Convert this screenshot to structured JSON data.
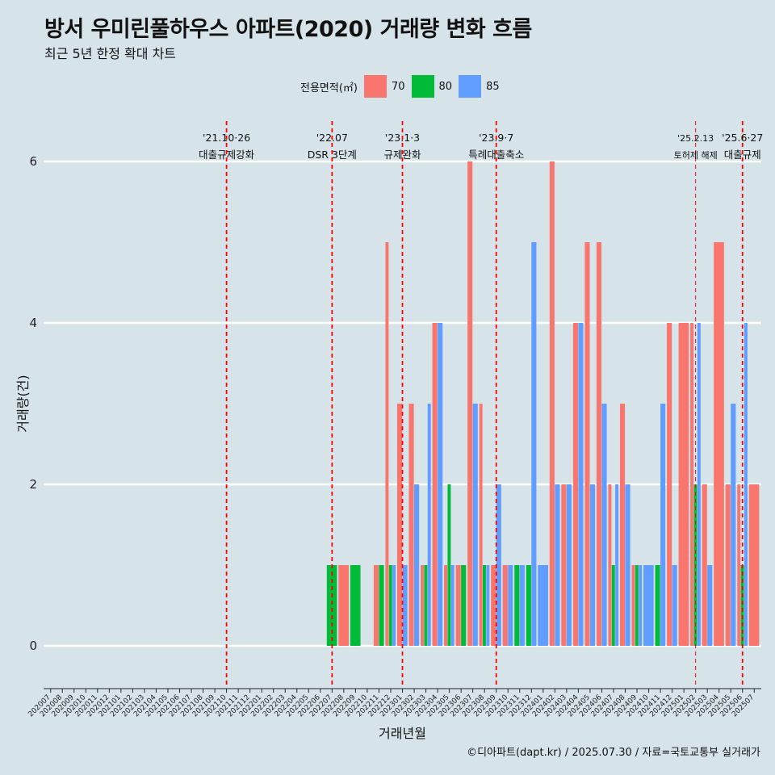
{
  "header": {
    "title": "방서 우미린풀하우스 아파트(2020) 거래량 변화 흐름",
    "subtitle": "최근 5년 한정 확대 차트"
  },
  "legend": {
    "title": "전용면적(㎡)",
    "position": "top",
    "items": [
      {
        "label": "70",
        "color": "#f8766d"
      },
      {
        "label": "80",
        "color": "#00ba38"
      },
      {
        "label": "85",
        "color": "#619cff"
      }
    ]
  },
  "caption": "©디아파트(dapt.kr) / 2025.07.30 / 자료=국토교통부 실거래가",
  "chart_data": {
    "type": "bar",
    "xlabel": "거래년월",
    "ylabel": "거래량(건)",
    "ylim": [
      -0.5,
      6.5
    ],
    "y_ticks": [
      0,
      2,
      4,
      6
    ],
    "grid": "horizontal major lines",
    "categories": [
      "202007",
      "202008",
      "202009",
      "202010",
      "202011",
      "202012",
      "202101",
      "202102",
      "202103",
      "202104",
      "202105",
      "202106",
      "202107",
      "202108",
      "202109",
      "202110",
      "202111",
      "202112",
      "202201",
      "202202",
      "202203",
      "202204",
      "202205",
      "202206",
      "202207",
      "202208",
      "202209",
      "202210",
      "202211",
      "202212",
      "202301",
      "202302",
      "202303",
      "202304",
      "202305",
      "202306",
      "202307",
      "202308",
      "202309",
      "202310",
      "202311",
      "202312",
      "202401",
      "202402",
      "202403",
      "202404",
      "202405",
      "202406",
      "202407",
      "202408",
      "202409",
      "202410",
      "202411",
      "202412",
      "202501",
      "202502",
      "202503",
      "202504",
      "202505",
      "202506",
      "202507"
    ],
    "series": [
      {
        "name": "70",
        "color": "#f8766d",
        "values": [
          null,
          null,
          null,
          null,
          null,
          null,
          null,
          null,
          null,
          null,
          null,
          null,
          null,
          null,
          null,
          null,
          null,
          null,
          null,
          null,
          null,
          null,
          null,
          null,
          null,
          1,
          null,
          null,
          1,
          5,
          3,
          3,
          1,
          4,
          1,
          1,
          6,
          3,
          1,
          1,
          null,
          null,
          null,
          6,
          2,
          4,
          5,
          5,
          2,
          3,
          1,
          null,
          null,
          4,
          4,
          4,
          2,
          5,
          2,
          2,
          2
        ]
      },
      {
        "name": "80",
        "color": "#00ba38",
        "values": [
          null,
          null,
          null,
          null,
          null,
          null,
          null,
          null,
          null,
          null,
          null,
          null,
          null,
          null,
          null,
          null,
          null,
          null,
          null,
          null,
          null,
          null,
          null,
          null,
          1,
          null,
          1,
          null,
          1,
          1,
          null,
          null,
          1,
          null,
          2,
          1,
          null,
          1,
          null,
          null,
          1,
          1,
          null,
          null,
          null,
          null,
          null,
          null,
          1,
          null,
          1,
          null,
          1,
          null,
          null,
          2,
          null,
          null,
          null,
          1,
          null
        ]
      },
      {
        "name": "85",
        "color": "#619cff",
        "values": [
          null,
          null,
          null,
          null,
          null,
          null,
          null,
          null,
          null,
          null,
          null,
          null,
          null,
          null,
          null,
          null,
          null,
          null,
          null,
          null,
          null,
          null,
          null,
          null,
          null,
          null,
          null,
          null,
          null,
          1,
          1,
          2,
          3,
          4,
          1,
          null,
          3,
          1,
          2,
          1,
          1,
          5,
          1,
          2,
          2,
          4,
          2,
          3,
          2,
          2,
          1,
          1,
          3,
          1,
          null,
          4,
          1,
          null,
          3,
          4,
          null
        ]
      }
    ],
    "annotations": [
      {
        "date": "202110",
        "line1": "'21.10·26",
        "line2": "대출규제강화"
      },
      {
        "date": "202207",
        "line1": "'22.07",
        "line2": "DSR 3단계"
      },
      {
        "date": "202301",
        "line1": "'23.1·3",
        "line2": "규제완화"
      },
      {
        "date": "202309",
        "line1": "'23.9·7",
        "line2": "특례대출축소"
      },
      {
        "date": "202502",
        "line1": "'25.2.13",
        "line2": "토허제 해제"
      },
      {
        "date": "202506",
        "line1": "'25.6·27",
        "line2": "대출규제"
      }
    ]
  }
}
